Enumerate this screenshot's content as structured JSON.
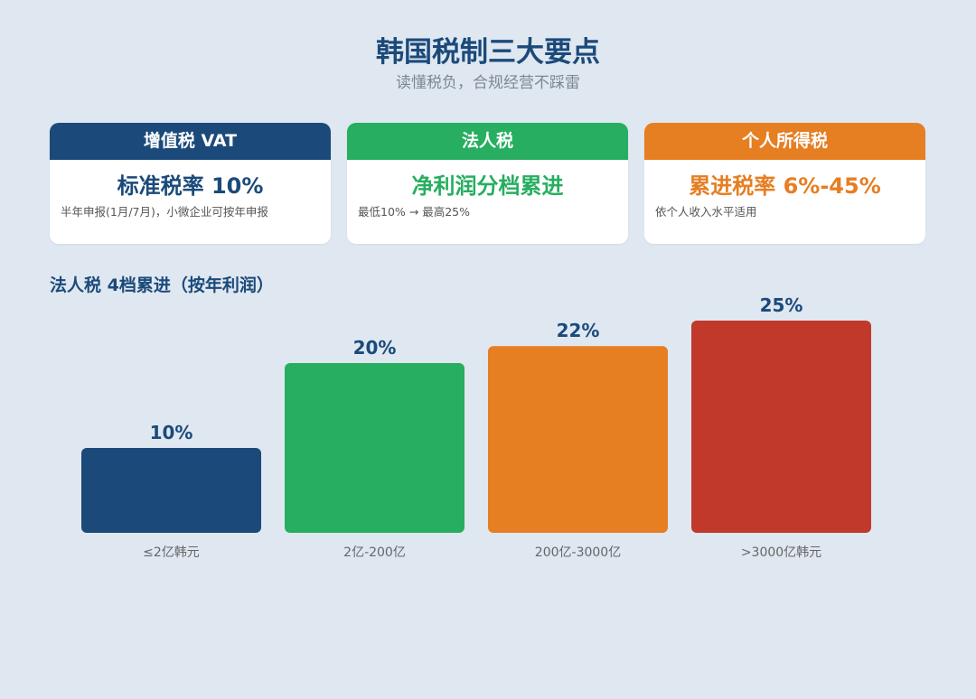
{
  "header": {
    "title": "韩国税制三大要点",
    "subtitle": "读懂税负，合规经营不踩雷"
  },
  "cards": [
    {
      "title": "增值税 VAT",
      "main": "标准税率 10%",
      "note": "半年申报(1月/7月)，小微企业可按年申报",
      "color": "#1b4a7a"
    },
    {
      "title": "法人税",
      "main": "净利润分档累进",
      "note": "最低10% → 最高25%",
      "color": "#27ae60"
    },
    {
      "title": "个人所得税",
      "main": "累进税率 6%-45%",
      "note": "依个人收入水平适用",
      "color": "#e67e22"
    }
  ],
  "chart_data": {
    "type": "bar",
    "title": "法人税 4档累进（按年利润）",
    "categories": [
      "≤2亿韩元",
      "2亿-200亿",
      "200亿-3000亿",
      ">3000亿韩元"
    ],
    "values": [
      10,
      20,
      22,
      25
    ],
    "value_labels": [
      "10%",
      "20%",
      "22%",
      "25%"
    ],
    "colors": [
      "#1b4a7a",
      "#27ae60",
      "#e67e22",
      "#c0392b"
    ],
    "ylim": [
      0,
      25
    ],
    "grid": false
  }
}
